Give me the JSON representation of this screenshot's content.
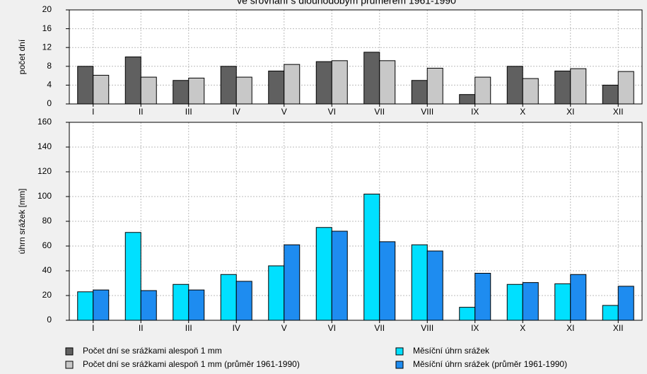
{
  "chart_data": [
    {
      "type": "bar",
      "title": "ve srovnání s dlouhodobým průměrem 1961-1990",
      "y_label": "počet dní",
      "categories": [
        "I",
        "II",
        "III",
        "IV",
        "V",
        "VI",
        "VII",
        "VIII",
        "IX",
        "X",
        "XI",
        "XII"
      ],
      "series": [
        {
          "name": "Počet dní se srážkami alespoň 1 mm",
          "color": "#606060",
          "values": [
            8,
            10,
            5,
            8,
            7,
            9,
            11,
            5,
            2,
            8,
            7,
            4
          ]
        },
        {
          "name": "Počet dní se srážkami alespoň 1 mm (průměr 1961-1990)",
          "color": "#c8c8c8",
          "values": [
            6.1,
            5.7,
            5.5,
            5.7,
            8.4,
            9.2,
            9.2,
            7.6,
            5.7,
            5.4,
            7.5,
            6.9
          ]
        }
      ],
      "ylim": [
        0,
        20
      ],
      "yticks": [
        0,
        4,
        8,
        12,
        16,
        20
      ],
      "grid": true
    },
    {
      "type": "bar",
      "y_label": "úhrn srážek [mm]",
      "categories": [
        "I",
        "II",
        "III",
        "IV",
        "V",
        "VI",
        "VII",
        "VIII",
        "IX",
        "X",
        "XI",
        "XII"
      ],
      "series": [
        {
          "name": "Měsíční úhrn srážek",
          "color": "#00e0ff",
          "values": [
            23,
            71,
            29,
            37,
            44,
            75,
            102,
            61,
            10.5,
            29,
            29.5,
            12
          ]
        },
        {
          "name": "Měsíční úhrn srážek (průměr 1961-1990)",
          "color": "#1e8cf0",
          "values": [
            24.5,
            24,
            24.5,
            31.5,
            61,
            72,
            63.5,
            56,
            38,
            30.5,
            37,
            27.5
          ]
        }
      ],
      "ylim": [
        0,
        160
      ],
      "yticks": [
        0,
        20,
        40,
        60,
        80,
        100,
        120,
        140,
        160
      ],
      "grid": true
    }
  ]
}
